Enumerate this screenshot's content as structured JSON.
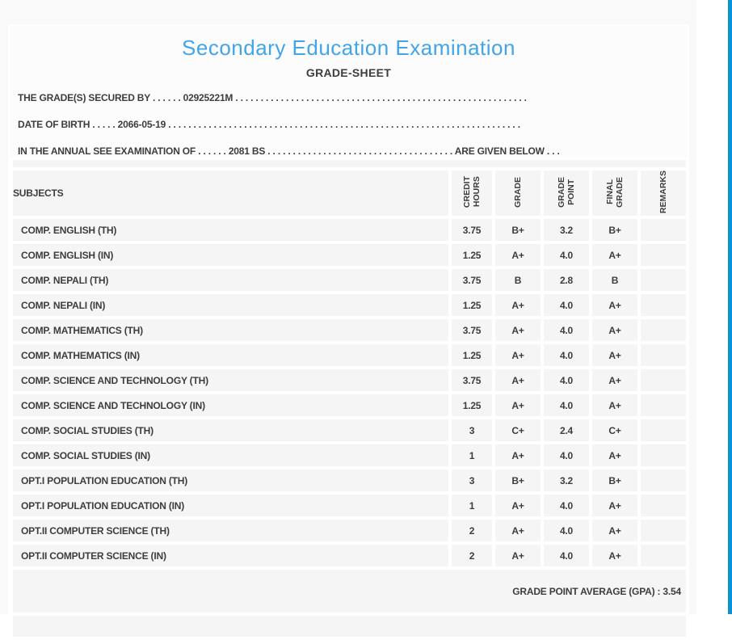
{
  "colors": {
    "accent_stripe": "#0993d3",
    "title_blue": "#41a5ea",
    "text_dark": "#3d3d3d",
    "row_background": "#f5f5f6",
    "page_background": "#f9f9f9"
  },
  "header": {
    "title": "Secondary Education Examination",
    "subtitle": "GRADE-SHEET"
  },
  "info": {
    "line1": {
      "label": "THE GRADE(S) SECURED BY",
      "dots_before": ". . . . . .",
      "value": "02925221M",
      "dots_after": ". . . . . . . . . . . . . . . . . . . . . . . . . . . . . . . . . . . . . . . . . . . . . . . . . . . . . . . . . ."
    },
    "line2": {
      "label": "DATE OF BIRTH",
      "dots_before": ". . . . .",
      "value": "2066-05-19",
      "dots_after": ". . . . . . . . . . . . . . . . . . . . . . . . . . . . . . . . . . . . . . . . . . . . . . . . . . . . . . . . . . . . . . . . . . . . . ."
    },
    "line3": {
      "label": "IN THE ANNUAL SEE EXAMINATION OF",
      "dots_before": ". . . . . .",
      "value": "2081 BS",
      "dots_after": ". . . . . . . . . . . . . . . . . . . . . . . . . . . . . . . . . . . . .",
      "suffix": "ARE GIVEN BELOW",
      "dots_end": ". . ."
    }
  },
  "table": {
    "subjects_header": "SUBJECTS",
    "columns": [
      {
        "key": "credit_hours",
        "label": "CREDIT HOURS",
        "lines": [
          "CREDIT",
          "HOURS"
        ]
      },
      {
        "key": "grade",
        "label": "GRADE",
        "lines": [
          "GRADE"
        ]
      },
      {
        "key": "grade_point",
        "label": "GRADE POINT",
        "lines": [
          "GRADE",
          "POINT"
        ]
      },
      {
        "key": "final_grade",
        "label": "FINAL GRADE",
        "lines": [
          "FINAL",
          "GRADE"
        ]
      },
      {
        "key": "remarks",
        "label": "REMARKS",
        "lines": [
          "REMARKS"
        ]
      }
    ],
    "rows": [
      {
        "subject": "COMP. ENGLISH (TH)",
        "credit_hours": "3.75",
        "grade": "B+",
        "grade_point": "3.2",
        "final_grade": "B+",
        "remarks": ""
      },
      {
        "subject": "COMP. ENGLISH (IN)",
        "credit_hours": "1.25",
        "grade": "A+",
        "grade_point": "4.0",
        "final_grade": "A+",
        "remarks": ""
      },
      {
        "subject": "COMP. NEPALI (TH)",
        "credit_hours": "3.75",
        "grade": "B",
        "grade_point": "2.8",
        "final_grade": "B",
        "remarks": ""
      },
      {
        "subject": "COMP. NEPALI (IN)",
        "credit_hours": "1.25",
        "grade": "A+",
        "grade_point": "4.0",
        "final_grade": "A+",
        "remarks": ""
      },
      {
        "subject": "COMP. MATHEMATICS (TH)",
        "credit_hours": "3.75",
        "grade": "A+",
        "grade_point": "4.0",
        "final_grade": "A+",
        "remarks": ""
      },
      {
        "subject": "COMP. MATHEMATICS (IN)",
        "credit_hours": "1.25",
        "grade": "A+",
        "grade_point": "4.0",
        "final_grade": "A+",
        "remarks": ""
      },
      {
        "subject": "COMP. SCIENCE AND TECHNOLOGY (TH)",
        "credit_hours": "3.75",
        "grade": "A+",
        "grade_point": "4.0",
        "final_grade": "A+",
        "remarks": ""
      },
      {
        "subject": "COMP. SCIENCE AND TECHNOLOGY (IN)",
        "credit_hours": "1.25",
        "grade": "A+",
        "grade_point": "4.0",
        "final_grade": "A+",
        "remarks": ""
      },
      {
        "subject": "COMP. SOCIAL STUDIES (TH)",
        "credit_hours": "3",
        "grade": "C+",
        "grade_point": "2.4",
        "final_grade": "C+",
        "remarks": ""
      },
      {
        "subject": "COMP. SOCIAL STUDIES (IN)",
        "credit_hours": "1",
        "grade": "A+",
        "grade_point": "4.0",
        "final_grade": "A+",
        "remarks": ""
      },
      {
        "subject": "OPT.I POPULATION EDUCATION (TH)",
        "credit_hours": "3",
        "grade": "B+",
        "grade_point": "3.2",
        "final_grade": "B+",
        "remarks": ""
      },
      {
        "subject": "OPT.I POPULATION EDUCATION (IN)",
        "credit_hours": "1",
        "grade": "A+",
        "grade_point": "4.0",
        "final_grade": "A+",
        "remarks": ""
      },
      {
        "subject": "OPT.II COMPUTER SCIENCE (TH)",
        "credit_hours": "2",
        "grade": "A+",
        "grade_point": "4.0",
        "final_grade": "A+",
        "remarks": ""
      },
      {
        "subject": "OPT.II COMPUTER SCIENCE (IN)",
        "credit_hours": "2",
        "grade": "A+",
        "grade_point": "4.0",
        "final_grade": "A+",
        "remarks": ""
      }
    ],
    "footer": "GRADE POINT AVERAGE (GPA) : 3.54"
  }
}
